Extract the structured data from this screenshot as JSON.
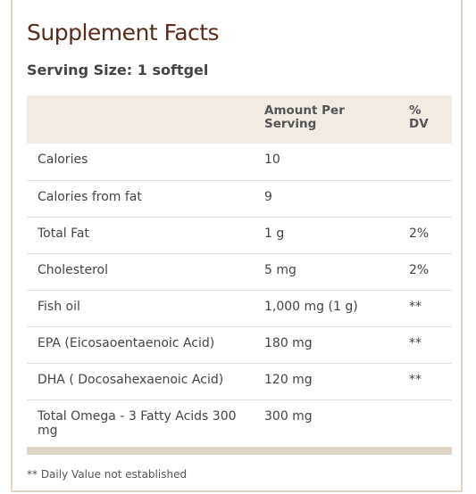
{
  "title": "Supplement Facts",
  "serving_size": "Serving Size: 1 softgel",
  "table": {
    "headers": [
      "",
      "Amount Per Serving",
      "% DV"
    ],
    "rows": [
      {
        "name": "Calories",
        "amount": "10",
        "dv": ""
      },
      {
        "name": "Calories from fat",
        "amount": "9",
        "dv": ""
      },
      {
        "name": "Total Fat",
        "amount": "1 g",
        "dv": "2%"
      },
      {
        "name": "Cholesterol",
        "amount": "5 mg",
        "dv": "2%"
      },
      {
        "name": "Fish oil",
        "amount": "1,000 mg (1 g)",
        "dv": "**"
      },
      {
        "name": "EPA (Eicosaoentaenoic Acid)",
        "amount": "180 mg",
        "dv": "**"
      },
      {
        "name": "DHA ( Docosahexaenoic Acid)",
        "amount": "120 mg",
        "dv": "**"
      },
      {
        "name": "Total Omega - 3 Fatty Acids 300 mg",
        "amount": "300 mg",
        "dv": ""
      }
    ]
  },
  "footnote": "** Daily Value not established",
  "colors": {
    "title": "#5a2c1c",
    "header_bg": "#f1ebe2",
    "border": "#ded5c8"
  }
}
